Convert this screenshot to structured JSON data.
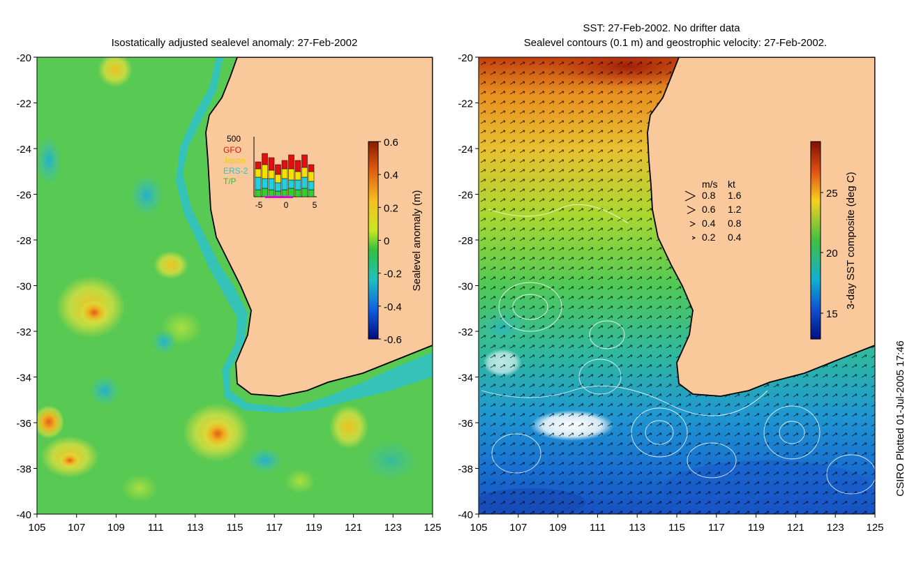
{
  "left_panel": {
    "title": "Isostatically adjusted sealevel anomaly: 27-Feb-2002",
    "x_ticks": [
      "105",
      "107",
      "109",
      "111",
      "113",
      "115",
      "117",
      "119",
      "121",
      "123",
      "125"
    ],
    "y_ticks": [
      "-20",
      "-22",
      "-24",
      "-26",
      "-28",
      "-30",
      "-32",
      "-34",
      "-36",
      "-38",
      "-40"
    ],
    "colorbar": {
      "label": "Sealevel anomaly (m)",
      "ticks": [
        "0.6",
        "0.4",
        "0.2",
        "0",
        "-0.2",
        "-0.4",
        "-0.6"
      ]
    },
    "satellite_inset": {
      "y_max_label": "500",
      "legend": [
        {
          "name": "GFO",
          "color": "#e01010"
        },
        {
          "name": "Jason",
          "color": "#f5e000"
        },
        {
          "name": "ERS-2",
          "color": "#20d0e0"
        },
        {
          "name": "T/P",
          "color": "#30d030"
        }
      ],
      "x_ticks": [
        "-5",
        "0",
        "5"
      ]
    }
  },
  "right_panel": {
    "title_line1": "SST: 27-Feb-2002. No drifter data",
    "title_line2": "Sealevel contours (0.1 m) and geostrophic velocity: 27-Feb-2002.",
    "x_ticks": [
      "105",
      "107",
      "109",
      "111",
      "113",
      "115",
      "117",
      "119",
      "121",
      "123",
      "125"
    ],
    "y_ticks": [
      "-20",
      "-22",
      "-24",
      "-26",
      "-28",
      "-30",
      "-32",
      "-34",
      "-36",
      "-38",
      "-40"
    ],
    "colorbar": {
      "label": "3-day SST composite (deg C)",
      "ticks": [
        "25",
        "20",
        "15"
      ]
    },
    "velocity_legend": {
      "header_ms": "m/s",
      "header_kt": "kt",
      "rows": [
        {
          "ms": "0.8",
          "kt": "1.6"
        },
        {
          "ms": "0.6",
          "kt": "1.2"
        },
        {
          "ms": "0.4",
          "kt": "0.8"
        },
        {
          "ms": "0.2",
          "kt": "0.4"
        }
      ]
    }
  },
  "credit": "CSIRO Plotted 01-Jul-2005 17:46",
  "colors": {
    "land": "#f9c89b",
    "coast": "#000000",
    "ssh_background": "#5fce4a",
    "sst_warm": "#e07010",
    "sst_cool": "#1a70d0"
  }
}
